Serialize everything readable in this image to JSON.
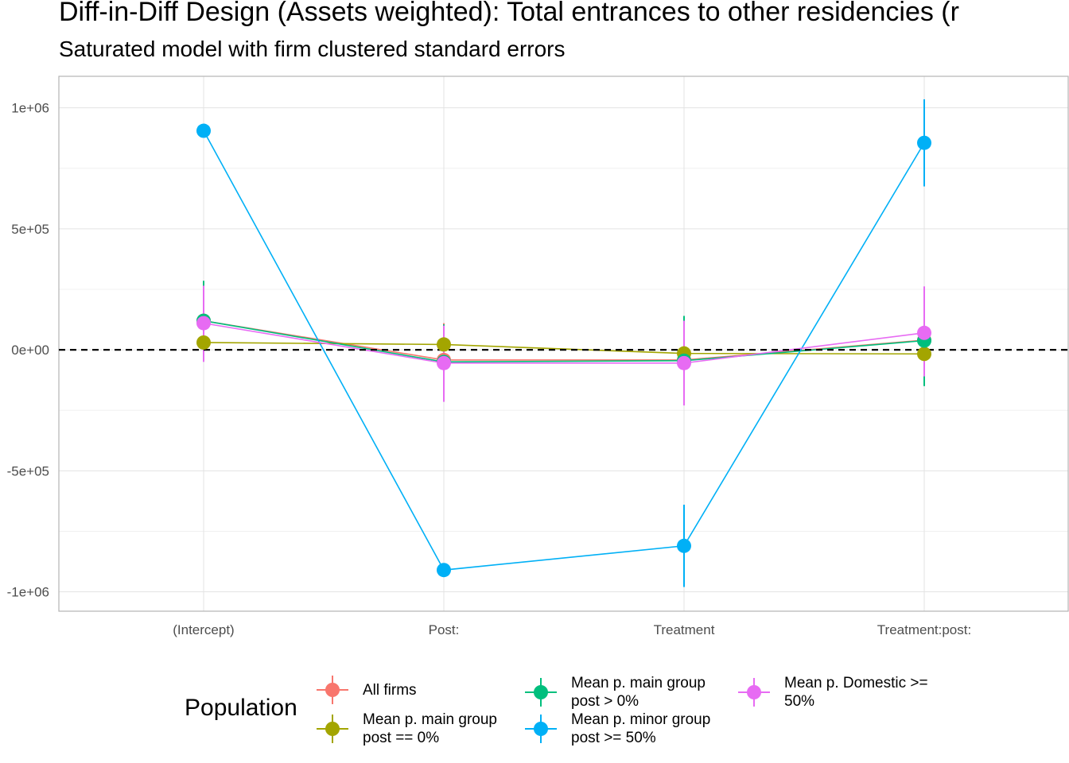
{
  "chart_data": {
    "type": "scatter",
    "title": "Diff-in-Diff Design (Assets weighted): Total entrances to other residencies (r",
    "subtitle": "Saturated model with firm clustered standard errors",
    "xlabel": "",
    "ylabel": "",
    "categories": [
      "(Intercept)",
      "Post:",
      "Treatment",
      "Treatment:post:"
    ],
    "y_ticks": [
      {
        "value": 1000000,
        "label": "1e+06"
      },
      {
        "value": 500000,
        "label": "5e+05"
      },
      {
        "value": 0,
        "label": "0e+00"
      },
      {
        "value": -500000,
        "label": "-5e+05"
      },
      {
        "value": -1000000,
        "label": "-1e+06"
      }
    ],
    "ylim": [
      -1080000,
      1130000
    ],
    "grid": true,
    "reference_line": 0,
    "legend": {
      "title": "Population",
      "position": "bottom"
    },
    "series": [
      {
        "name": "All firms",
        "color": "#F8766D",
        "values": [
          120000,
          -42000,
          -42000,
          40000
        ],
        "lower": [
          -40000,
          -200000,
          -200000,
          -130000
        ],
        "upper": [
          280000,
          110000,
          130000,
          210000
        ]
      },
      {
        "name": "Mean p. main group\npost == 0%",
        "color": "#A3A500",
        "values": [
          30000,
          22000,
          -15000,
          -17000
        ],
        "lower": [
          20000,
          10000,
          -25000,
          -27000
        ],
        "upper": [
          40000,
          34000,
          -5000,
          -7000
        ]
      },
      {
        "name": "Mean p. main group\npost > 0%",
        "color": "#00BF7D",
        "values": [
          120000,
          -50000,
          -45000,
          38000
        ],
        "lower": [
          -40000,
          -210000,
          -210000,
          -150000
        ],
        "upper": [
          285000,
          105000,
          140000,
          220000
        ]
      },
      {
        "name": "Mean p. minor group\npost >= 50%",
        "color": "#00B0F6",
        "values": [
          905000,
          -910000,
          -810000,
          855000
        ],
        "lower": [
          880000,
          -930000,
          -980000,
          675000
        ],
        "upper": [
          930000,
          -890000,
          -640000,
          1035000
        ]
      },
      {
        "name": "Mean p. Domestic >=\n50%",
        "color": "#E76BF3",
        "values": [
          110000,
          -55000,
          -55000,
          70000
        ],
        "lower": [
          -50000,
          -215000,
          -230000,
          -110000
        ],
        "upper": [
          265000,
          100000,
          120000,
          262000
        ]
      }
    ]
  }
}
